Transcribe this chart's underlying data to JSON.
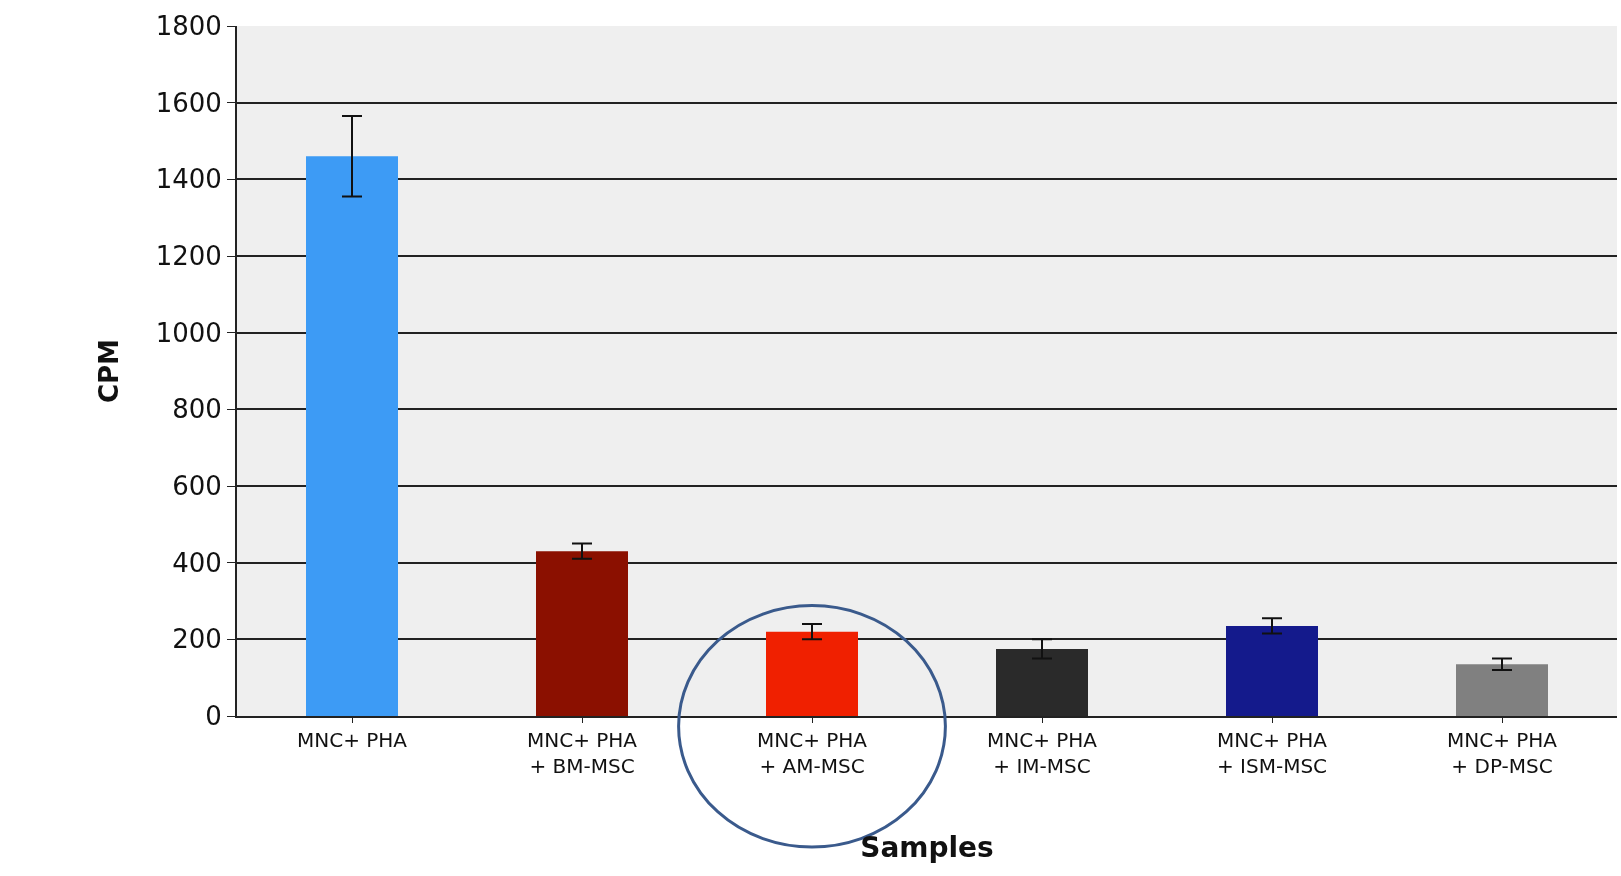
{
  "chart_data": {
    "type": "bar",
    "xlabel": "Samples",
    "ylabel": "CPM",
    "categories": [
      "MNC+ PHA",
      "MNC+ PHA\n+ BM-MSC",
      "MNC+ PHA\n+ AM-MSC",
      "MNC+ PHA\n+ IM-MSC",
      "MNC+ PHA\n+ ISM-MSC",
      "MNC+ PHA\n+ DP-MSC"
    ],
    "values": [
      1460,
      430,
      220,
      175,
      235,
      135
    ],
    "errors": [
      105,
      20,
      20,
      25,
      20,
      15
    ],
    "colors": [
      "#3d9bf5",
      "#8b1000",
      "#f02000",
      "#2a2a2a",
      "#141a8c",
      "#808080"
    ],
    "ylim": [
      0,
      1800
    ],
    "yticks": [
      0,
      200,
      400,
      600,
      800,
      1000,
      1200,
      1400,
      1600,
      1800
    ],
    "grid": "y",
    "legend": false
  }
}
